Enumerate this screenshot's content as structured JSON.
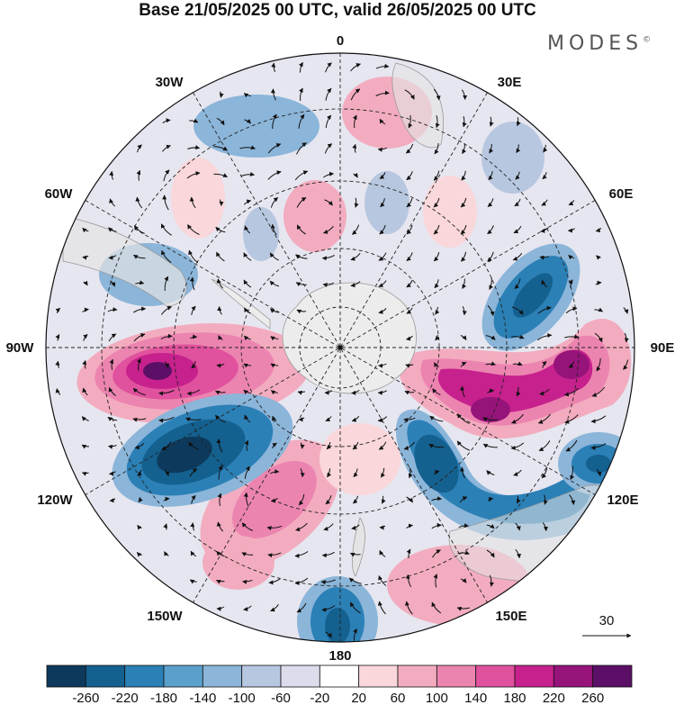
{
  "title": "Base 21/05/2025 00 UTC, valid 26/05/2025 00 UTC",
  "brand": {
    "name": "MODES",
    "mark": "©"
  },
  "map": {
    "projection": "south-polar-stereographic",
    "longitude_labels": [
      "0",
      "30E",
      "60E",
      "90E",
      "120E",
      "150E",
      "180",
      "150W",
      "120W",
      "90W",
      "60W",
      "30W"
    ],
    "vector_reference": {
      "value": "30"
    }
  },
  "colorbar": {
    "tick_labels": [
      "-260",
      "-220",
      "-180",
      "-140",
      "-100",
      "-60",
      "-20",
      "20",
      "60",
      "100",
      "140",
      "180",
      "220",
      "260"
    ],
    "colors": [
      "#0d3a5c",
      "#14608f",
      "#2b80b6",
      "#5aa0cc",
      "#8bb5d9",
      "#b8c7e0",
      "#dcdcec",
      "#ffffff",
      "#f9d7da",
      "#f3acbf",
      "#ec84b0",
      "#e0519e",
      "#c6218c",
      "#96137a",
      "#5c0f66"
    ]
  }
}
